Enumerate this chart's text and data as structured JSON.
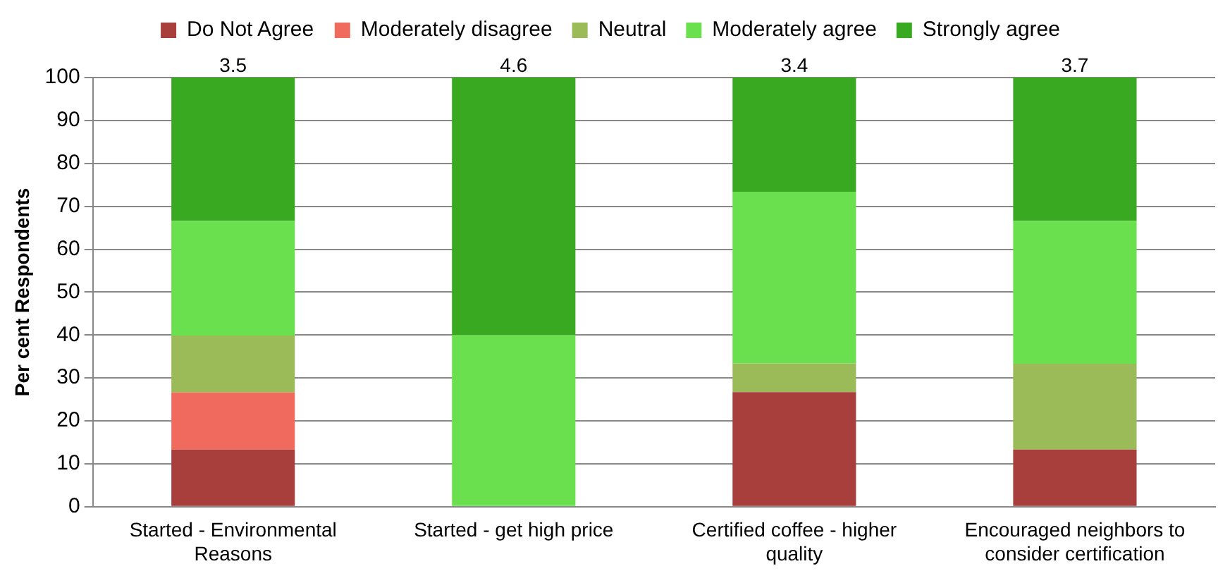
{
  "chart_data": {
    "type": "bar",
    "stacked": true,
    "ylabel": "Per cent Respondents",
    "categories": [
      "Started - Environmental Reasons",
      "Started - get high price",
      "Certified coffee - higher quality",
      "Encouraged neighbors to consider certification"
    ],
    "series": [
      {
        "name": "Do Not Agree",
        "color": "#a83f3c",
        "values": [
          13.3,
          0,
          26.7,
          13.3
        ]
      },
      {
        "name": "Moderately disagree",
        "color": "#f06a5e",
        "values": [
          13.3,
          0,
          0,
          0
        ]
      },
      {
        "name": "Neutral",
        "color": "#9bbb59",
        "values": [
          13.3,
          0,
          6.7,
          20
        ]
      },
      {
        "name": "Moderately agree",
        "color": "#6be04e",
        "values": [
          26.7,
          40,
          40,
          33.3
        ]
      },
      {
        "name": "Strongly agree",
        "color": "#3aa922",
        "values": [
          33.4,
          60,
          26.6,
          33.4
        ]
      }
    ],
    "annotations": [
      {
        "text": "3.5",
        "x": "Started - Environmental Reasons",
        "y": 100
      },
      {
        "text": "4.6",
        "x": "Started - get high price",
        "y": 100
      },
      {
        "text": "3.4",
        "x": "Certified coffee - higher quality",
        "y": 100
      },
      {
        "text": "3.7",
        "x": "Encouraged neighbors to consider certification",
        "y": 100
      }
    ],
    "ylim": [
      0,
      100
    ],
    "yticks": [
      0,
      10,
      20,
      30,
      40,
      50,
      60,
      70,
      80,
      90,
      100
    ],
    "grid": "y",
    "legend": "top"
  }
}
